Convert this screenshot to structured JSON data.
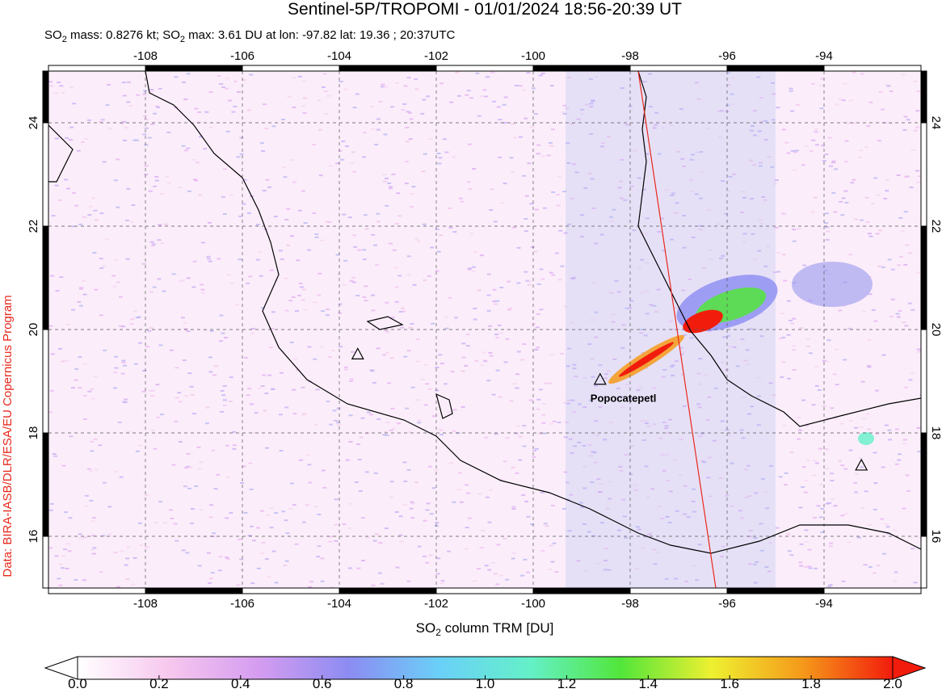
{
  "title": "Sentinel-5P/TROPOMI - 01/01/2024 18:56-20:39 UT",
  "subtitle_parts": [
    "SO",
    "2",
    " mass: 0.8276 kt; SO",
    "2",
    " max: 3.61 DU at lon: -97.82 lat: 19.36 ; 20:37UTC"
  ],
  "credit": "Data: BIRA-IASB/DLR/ESA/EU Copernicus Program",
  "map": {
    "xlim": [
      -110,
      -92
    ],
    "ylim": [
      15,
      25
    ],
    "xticks": [
      -108,
      -106,
      -104,
      -102,
      -100,
      -98,
      -96,
      -94
    ],
    "yticks": [
      16,
      18,
      20,
      22,
      24
    ],
    "grid": true,
    "volcanoes": [
      {
        "name": "Popocatepetl",
        "lon": -98.62,
        "lat": 19.02
      },
      {
        "lon": -103.62,
        "lat": 19.51
      },
      {
        "lon": -93.23,
        "lat": 17.36
      }
    ]
  },
  "colorbar": {
    "label_parts": [
      "SO",
      "2",
      " column TRM [DU]"
    ],
    "lim": [
      0,
      2
    ],
    "ticks": [
      {
        "value": 0,
        "label": "0.0"
      },
      0.2,
      0.4,
      0.6,
      0.8,
      {
        "value": 1,
        "label": "1.0"
      },
      1.2,
      1.4,
      1.6,
      1.8,
      {
        "value": 2,
        "label": "2.0"
      }
    ],
    "colors": [
      "#ffffff",
      "#f7c8ee",
      "#d59cf0",
      "#8c8cf2",
      "#6ad0f8",
      "#64f0c8",
      "#52e63a",
      "#eef030",
      "#f59a1a",
      "#f21c0c"
    ]
  }
}
